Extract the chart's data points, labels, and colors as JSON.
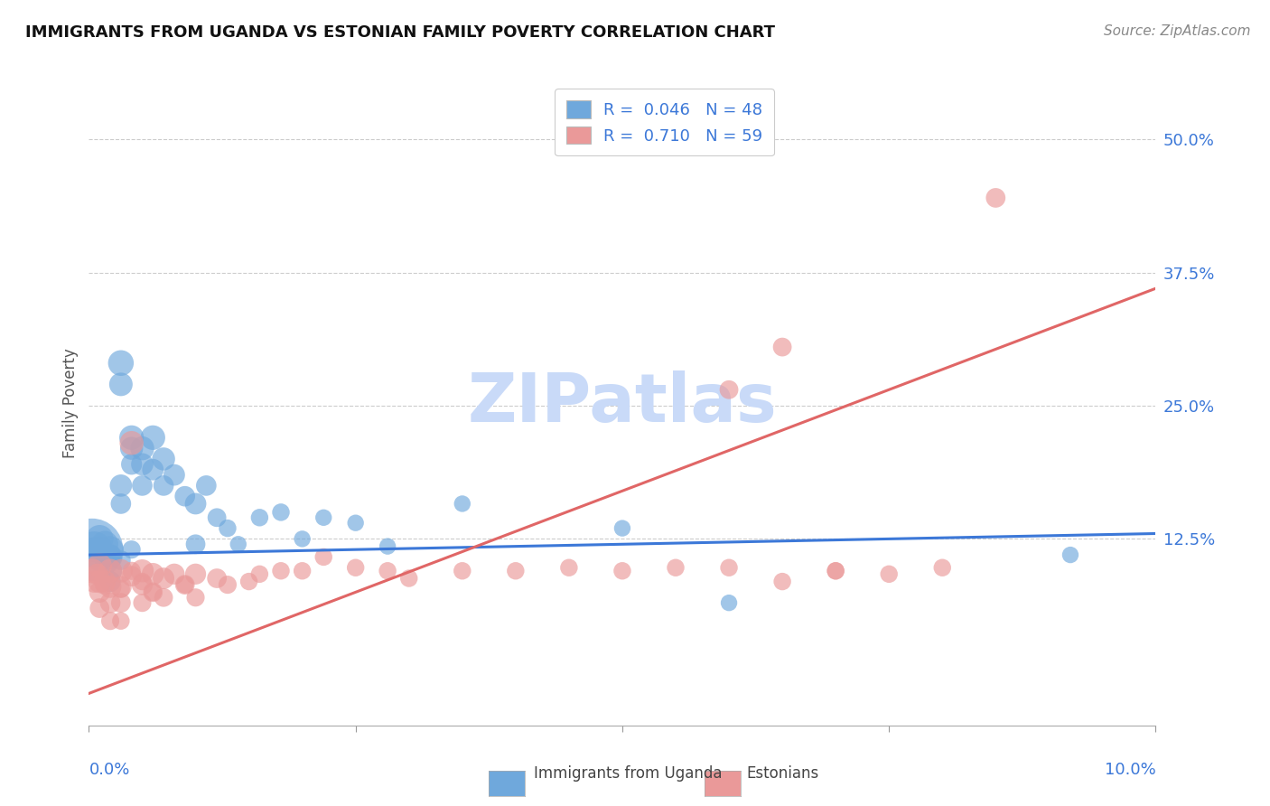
{
  "title": "IMMIGRANTS FROM UGANDA VS ESTONIAN FAMILY POVERTY CORRELATION CHART",
  "source": "Source: ZipAtlas.com",
  "ylabel": "Family Poverty",
  "ytick_values": [
    0.0,
    0.125,
    0.25,
    0.375,
    0.5
  ],
  "ytick_labels": [
    "",
    "12.5%",
    "25.0%",
    "37.5%",
    "50.0%"
  ],
  "xlim": [
    0.0,
    0.1
  ],
  "ylim": [
    -0.05,
    0.555
  ],
  "legend_blue_label": "R =  0.046   N = 48",
  "legend_pink_label": "R =  0.710   N = 59",
  "blue_color": "#6fa8dc",
  "pink_color": "#ea9999",
  "blue_line_color": "#3c78d8",
  "pink_line_color": "#e06666",
  "watermark": "ZIPatlas",
  "watermark_color": "#c9daf8",
  "blue_points_x": [
    0.0003,
    0.0005,
    0.001,
    0.001,
    0.001,
    0.0015,
    0.0015,
    0.002,
    0.002,
    0.002,
    0.002,
    0.003,
    0.003,
    0.003,
    0.003,
    0.004,
    0.004,
    0.004,
    0.005,
    0.005,
    0.005,
    0.006,
    0.006,
    0.007,
    0.007,
    0.008,
    0.009,
    0.01,
    0.01,
    0.011,
    0.012,
    0.013,
    0.014,
    0.016,
    0.018,
    0.02,
    0.022,
    0.025,
    0.028,
    0.035,
    0.05,
    0.06,
    0.092,
    0.0005,
    0.0008,
    0.002,
    0.003,
    0.004
  ],
  "blue_points_y": [
    0.115,
    0.115,
    0.125,
    0.115,
    0.105,
    0.12,
    0.11,
    0.115,
    0.108,
    0.095,
    0.085,
    0.29,
    0.27,
    0.175,
    0.158,
    0.22,
    0.21,
    0.195,
    0.21,
    0.195,
    0.175,
    0.22,
    0.19,
    0.2,
    0.175,
    0.185,
    0.165,
    0.158,
    0.12,
    0.175,
    0.145,
    0.135,
    0.12,
    0.145,
    0.15,
    0.125,
    0.145,
    0.14,
    0.118,
    0.158,
    0.135,
    0.065,
    0.11,
    0.115,
    0.115,
    0.11,
    0.105,
    0.115
  ],
  "blue_sizes": [
    350,
    120,
    70,
    60,
    50,
    65,
    55,
    65,
    55,
    50,
    40,
    60,
    50,
    45,
    38,
    55,
    48,
    40,
    52,
    45,
    38,
    55,
    42,
    48,
    38,
    42,
    38,
    42,
    35,
    38,
    32,
    28,
    25,
    28,
    28,
    25,
    25,
    25,
    25,
    25,
    25,
    25,
    25,
    55,
    45,
    40,
    35,
    30
  ],
  "pink_points_x": [
    0.0003,
    0.0005,
    0.001,
    0.001,
    0.001,
    0.001,
    0.0015,
    0.002,
    0.002,
    0.002,
    0.002,
    0.003,
    0.003,
    0.003,
    0.003,
    0.004,
    0.004,
    0.005,
    0.005,
    0.005,
    0.006,
    0.006,
    0.007,
    0.007,
    0.008,
    0.009,
    0.01,
    0.01,
    0.012,
    0.013,
    0.015,
    0.016,
    0.018,
    0.02,
    0.022,
    0.025,
    0.028,
    0.03,
    0.035,
    0.04,
    0.045,
    0.05,
    0.055,
    0.06,
    0.065,
    0.07,
    0.06,
    0.065,
    0.07,
    0.075,
    0.08,
    0.085,
    0.0008,
    0.0015,
    0.003,
    0.004,
    0.005,
    0.006,
    0.009
  ],
  "pink_points_y": [
    0.095,
    0.085,
    0.1,
    0.085,
    0.075,
    0.06,
    0.085,
    0.095,
    0.08,
    0.065,
    0.048,
    0.095,
    0.08,
    0.065,
    0.048,
    0.215,
    0.09,
    0.095,
    0.082,
    0.065,
    0.092,
    0.075,
    0.088,
    0.07,
    0.092,
    0.082,
    0.092,
    0.07,
    0.088,
    0.082,
    0.085,
    0.092,
    0.095,
    0.095,
    0.108,
    0.098,
    0.095,
    0.088,
    0.095,
    0.095,
    0.098,
    0.095,
    0.098,
    0.098,
    0.085,
    0.095,
    0.265,
    0.305,
    0.095,
    0.092,
    0.098,
    0.445,
    0.092,
    0.082,
    0.078,
    0.095,
    0.085,
    0.075,
    0.082
  ],
  "pink_sizes": [
    55,
    45,
    55,
    48,
    40,
    35,
    45,
    52,
    45,
    38,
    30,
    50,
    42,
    35,
    28,
    52,
    38,
    48,
    40,
    30,
    45,
    35,
    42,
    32,
    40,
    35,
    40,
    30,
    35,
    30,
    28,
    28,
    28,
    28,
    28,
    28,
    28,
    28,
    28,
    28,
    28,
    28,
    28,
    28,
    28,
    28,
    32,
    32,
    28,
    28,
    28,
    35,
    40,
    35,
    30,
    30,
    28,
    28,
    28
  ],
  "blue_line_x": [
    0.0,
    0.1
  ],
  "blue_line_y": [
    0.11,
    0.13
  ],
  "pink_line_x": [
    0.0,
    0.1
  ],
  "pink_line_y": [
    -0.02,
    0.36
  ],
  "grid_color": "#cccccc",
  "bg_color": "#ffffff",
  "tick_color": "#3c78d8",
  "label_color": "#555555"
}
